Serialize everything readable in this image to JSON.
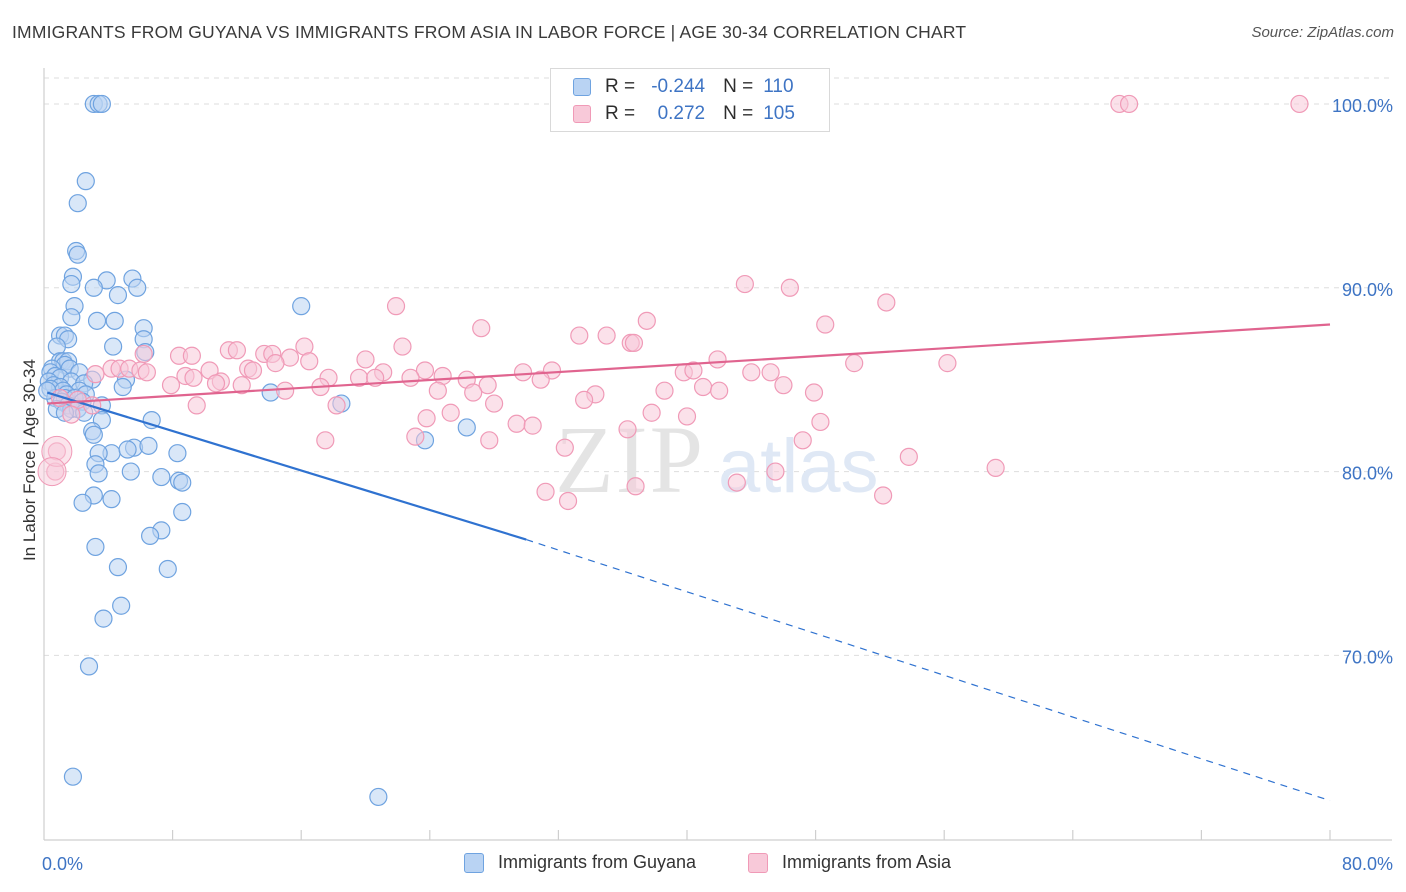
{
  "title": "IMMIGRANTS FROM GUYANA VS IMMIGRANTS FROM ASIA IN LABOR FORCE | AGE 30-34 CORRELATION CHART",
  "source": "Source: ZipAtlas.com",
  "watermark": {
    "zip": "ZIP",
    "atlas": "atlas"
  },
  "legend": {
    "r_label": "R =",
    "n_label": "N =",
    "series1": {
      "r": "-0.244",
      "n": "110"
    },
    "series2": {
      "r": "0.272",
      "n": "105"
    }
  },
  "bottom_legend": {
    "series1": "Immigrants from Guyana",
    "series2": "Immigrants from Asia"
  },
  "colors": {
    "blue": "#6fa3e0",
    "blue_fill": "#b9d3f3",
    "blue_line": "#2f72d0",
    "pink": "#f09ab7",
    "pink_fill": "#f8c9d9",
    "pink_line": "#e0648f",
    "axis_label": "#3e74c4",
    "grid": "#dddddd"
  },
  "chart_data": {
    "type": "scatter",
    "title": "IMMIGRANTS FROM GUYANA VS IMMIGRANTS FROM ASIA IN LABOR FORCE | AGE 30-34 CORRELATION CHART",
    "xlabel": "",
    "ylabel": "In Labor Force | Age 30-34",
    "xlim": [
      0,
      80
    ],
    "ylim": [
      60.5,
      102.5
    ],
    "x_tick_labels": [
      {
        "value": 0,
        "label": "0.0%"
      },
      {
        "value": 80,
        "label": "80.0%"
      }
    ],
    "y_ticks": [
      {
        "value": 100,
        "label": "100.0%"
      },
      {
        "value": 90,
        "label": "90.0%"
      },
      {
        "value": 80,
        "label": "80.0%"
      },
      {
        "value": 70,
        "label": "70.0%"
      }
    ],
    "x_minor_ticks": [
      8,
      16,
      24,
      32,
      40,
      48,
      56,
      64,
      72,
      80
    ],
    "series": [
      {
        "name": "Immigrants from Guyana",
        "color": "blue",
        "trend": {
          "x0": 0.2,
          "y0": 84.3,
          "x1": 30.0,
          "y1": 76.3,
          "dash_x1": 80.0,
          "dash_y1": 62.1
        },
        "points": [
          [
            3.1,
            100.0
          ],
          [
            3.4,
            100.0
          ],
          [
            3.6,
            100.0
          ],
          [
            2.6,
            95.8
          ],
          [
            2.1,
            94.6
          ],
          [
            2.0,
            92.0
          ],
          [
            2.1,
            91.8
          ],
          [
            1.8,
            90.6
          ],
          [
            1.7,
            90.2
          ],
          [
            3.9,
            90.4
          ],
          [
            5.5,
            90.5
          ],
          [
            3.1,
            90.0
          ],
          [
            5.8,
            90.0
          ],
          [
            4.6,
            89.6
          ],
          [
            16.0,
            89.0
          ],
          [
            1.9,
            89.0
          ],
          [
            1.7,
            88.4
          ],
          [
            3.3,
            88.2
          ],
          [
            4.4,
            88.2
          ],
          [
            6.2,
            87.8
          ],
          [
            1.0,
            87.4
          ],
          [
            1.3,
            87.4
          ],
          [
            1.5,
            87.2
          ],
          [
            6.2,
            87.2
          ],
          [
            0.8,
            86.8
          ],
          [
            4.3,
            86.8
          ],
          [
            6.3,
            86.5
          ],
          [
            1.0,
            86.0
          ],
          [
            1.2,
            86.0
          ],
          [
            1.5,
            86.0
          ],
          [
            1.3,
            85.8
          ],
          [
            0.5,
            85.6
          ],
          [
            1.6,
            85.6
          ],
          [
            2.2,
            85.4
          ],
          [
            0.4,
            85.4
          ],
          [
            0.7,
            85.2
          ],
          [
            1.0,
            85.1
          ],
          [
            3.0,
            85.0
          ],
          [
            5.1,
            85.0
          ],
          [
            1.7,
            84.9
          ],
          [
            0.3,
            84.9
          ],
          [
            0.6,
            84.7
          ],
          [
            2.5,
            84.8
          ],
          [
            4.9,
            84.6
          ],
          [
            1.0,
            84.6
          ],
          [
            0.4,
            84.5
          ],
          [
            1.2,
            84.4
          ],
          [
            2.2,
            84.4
          ],
          [
            1.4,
            84.2
          ],
          [
            2.6,
            84.2
          ],
          [
            0.7,
            84.0
          ],
          [
            1.3,
            84.0
          ],
          [
            1.9,
            84.0
          ],
          [
            14.1,
            84.3
          ],
          [
            1.1,
            83.8
          ],
          [
            2.4,
            83.8
          ],
          [
            1.5,
            83.6
          ],
          [
            3.6,
            83.6
          ],
          [
            18.5,
            83.7
          ],
          [
            0.8,
            83.4
          ],
          [
            1.7,
            83.4
          ],
          [
            2.1,
            83.4
          ],
          [
            1.3,
            83.2
          ],
          [
            2.5,
            83.2
          ],
          [
            3.6,
            82.8
          ],
          [
            6.7,
            82.8
          ],
          [
            3.0,
            82.2
          ],
          [
            3.1,
            82.0
          ],
          [
            26.3,
            82.4
          ],
          [
            23.7,
            81.7
          ],
          [
            5.6,
            81.3
          ],
          [
            6.5,
            81.4
          ],
          [
            4.2,
            81.0
          ],
          [
            3.4,
            81.0
          ],
          [
            5.2,
            81.2
          ],
          [
            8.3,
            81.0
          ],
          [
            3.2,
            80.4
          ],
          [
            5.4,
            80.0
          ],
          [
            3.4,
            79.9
          ],
          [
            7.3,
            79.7
          ],
          [
            8.4,
            79.5
          ],
          [
            8.6,
            79.4
          ],
          [
            3.1,
            78.7
          ],
          [
            4.2,
            78.5
          ],
          [
            2.4,
            78.3
          ],
          [
            8.6,
            77.8
          ],
          [
            7.3,
            76.8
          ],
          [
            6.6,
            76.5
          ],
          [
            3.2,
            75.9
          ],
          [
            4.6,
            74.8
          ],
          [
            7.7,
            74.7
          ],
          [
            4.8,
            72.7
          ],
          [
            3.7,
            72.0
          ],
          [
            2.8,
            69.4
          ],
          [
            1.8,
            63.4
          ],
          [
            20.8,
            62.3
          ],
          [
            0.2,
            84.4
          ]
        ]
      },
      {
        "name": "Immigrants from Asia",
        "color": "pink",
        "trend": {
          "x0": 0.2,
          "y0": 83.7,
          "x1": 80.0,
          "y1": 88.0
        },
        "points": [
          [
            66.9,
            100.0
          ],
          [
            67.5,
            100.0
          ],
          [
            78.1,
            100.0
          ],
          [
            43.6,
            90.2
          ],
          [
            46.4,
            90.0
          ],
          [
            21.9,
            89.0
          ],
          [
            52.4,
            89.2
          ],
          [
            37.5,
            88.2
          ],
          [
            27.2,
            87.8
          ],
          [
            48.6,
            88.0
          ],
          [
            33.3,
            87.4
          ],
          [
            35.0,
            87.4
          ],
          [
            36.5,
            87.0
          ],
          [
            36.7,
            87.0
          ],
          [
            16.2,
            86.8
          ],
          [
            22.3,
            86.8
          ],
          [
            11.5,
            86.6
          ],
          [
            12.0,
            86.6
          ],
          [
            6.2,
            86.4
          ],
          [
            8.4,
            86.3
          ],
          [
            9.2,
            86.3
          ],
          [
            13.7,
            86.4
          ],
          [
            14.2,
            86.4
          ],
          [
            15.3,
            86.2
          ],
          [
            16.5,
            86.0
          ],
          [
            20.0,
            86.1
          ],
          [
            14.4,
            85.9
          ],
          [
            41.9,
            86.1
          ],
          [
            50.4,
            85.9
          ],
          [
            56.2,
            85.9
          ],
          [
            4.2,
            85.6
          ],
          [
            4.7,
            85.6
          ],
          [
            5.3,
            85.6
          ],
          [
            6.0,
            85.5
          ],
          [
            6.4,
            85.4
          ],
          [
            10.3,
            85.5
          ],
          [
            12.7,
            85.6
          ],
          [
            13.0,
            85.5
          ],
          [
            21.1,
            85.4
          ],
          [
            23.7,
            85.5
          ],
          [
            29.8,
            85.4
          ],
          [
            31.6,
            85.5
          ],
          [
            39.8,
            85.4
          ],
          [
            40.4,
            85.5
          ],
          [
            44.0,
            85.4
          ],
          [
            45.2,
            85.4
          ],
          [
            3.2,
            85.3
          ],
          [
            8.8,
            85.2
          ],
          [
            9.3,
            85.1
          ],
          [
            11.0,
            84.9
          ],
          [
            17.7,
            85.1
          ],
          [
            19.6,
            85.1
          ],
          [
            20.6,
            85.1
          ],
          [
            22.8,
            85.1
          ],
          [
            24.8,
            85.2
          ],
          [
            26.3,
            85.0
          ],
          [
            30.9,
            85.0
          ],
          [
            7.9,
            84.7
          ],
          [
            10.7,
            84.8
          ],
          [
            12.3,
            84.7
          ],
          [
            17.2,
            84.6
          ],
          [
            27.6,
            84.7
          ],
          [
            41.0,
            84.6
          ],
          [
            46.0,
            84.7
          ],
          [
            15.0,
            84.4
          ],
          [
            24.5,
            84.4
          ],
          [
            26.7,
            84.3
          ],
          [
            34.3,
            84.2
          ],
          [
            38.6,
            84.4
          ],
          [
            42.0,
            84.4
          ],
          [
            47.9,
            84.3
          ],
          [
            1.0,
            84.0
          ],
          [
            2.1,
            83.9
          ],
          [
            3.0,
            83.6
          ],
          [
            9.5,
            83.6
          ],
          [
            18.2,
            83.6
          ],
          [
            33.6,
            83.9
          ],
          [
            28.0,
            83.7
          ],
          [
            25.3,
            83.2
          ],
          [
            37.8,
            83.2
          ],
          [
            40.0,
            83.0
          ],
          [
            23.8,
            82.9
          ],
          [
            29.4,
            82.6
          ],
          [
            30.4,
            82.5
          ],
          [
            48.3,
            82.7
          ],
          [
            36.3,
            82.3
          ],
          [
            17.5,
            81.7
          ],
          [
            27.7,
            81.7
          ],
          [
            23.1,
            81.9
          ],
          [
            32.4,
            81.3
          ],
          [
            47.2,
            81.7
          ],
          [
            0.8,
            81.1
          ],
          [
            0.7,
            80.0
          ],
          [
            53.8,
            80.8
          ],
          [
            45.5,
            80.0
          ],
          [
            59.2,
            80.2
          ],
          [
            43.1,
            79.4
          ],
          [
            36.8,
            79.2
          ],
          [
            31.2,
            78.9
          ],
          [
            32.6,
            78.4
          ],
          [
            52.2,
            78.7
          ],
          [
            1.7,
            83.1
          ]
        ]
      }
    ]
  }
}
